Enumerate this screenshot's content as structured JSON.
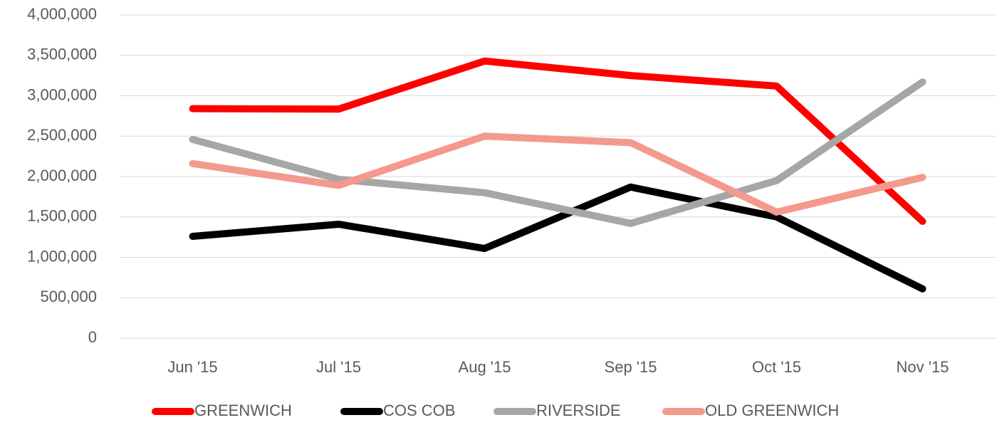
{
  "chart_data": {
    "type": "line",
    "categories": [
      "Jun '15",
      "Jul '15",
      "Aug '15",
      "Sep '15",
      "Oct '15",
      "Nov '15"
    ],
    "series": [
      {
        "name": "GREENWICH",
        "color": "#ff0000",
        "values": [
          2840000,
          2835000,
          3430000,
          3250000,
          3120000,
          1445000
        ]
      },
      {
        "name": "COS COB",
        "color": "#000000",
        "values": [
          1260000,
          1410000,
          1110000,
          1870000,
          1500000,
          610000
        ]
      },
      {
        "name": "RIVERSIDE",
        "color": "#a6a6a6",
        "values": [
          2460000,
          1965000,
          1800000,
          1420000,
          1950000,
          3170000
        ]
      },
      {
        "name": "OLD GREENWICH",
        "color": "#f4998d",
        "values": [
          2160000,
          1890000,
          2500000,
          2420000,
          1560000,
          1990000
        ]
      }
    ],
    "ylim": [
      0,
      4000000
    ],
    "yticks": [
      0,
      {
        "value": 500000,
        "label": "500,000"
      },
      {
        "value": 1000000,
        "label": "1,000,000"
      },
      {
        "value": 1500000,
        "label": "1,500,000"
      },
      {
        "value": 2000000,
        "label": "2,000,000"
      },
      {
        "value": 2500000,
        "label": "2,500,000"
      },
      {
        "value": 3000000,
        "label": "3,000,000"
      },
      {
        "value": 3500000,
        "label": "3,500,000"
      },
      {
        "value": 4000000,
        "label": "4,000,000"
      }
    ],
    "grid": true,
    "legend": "bottom"
  }
}
